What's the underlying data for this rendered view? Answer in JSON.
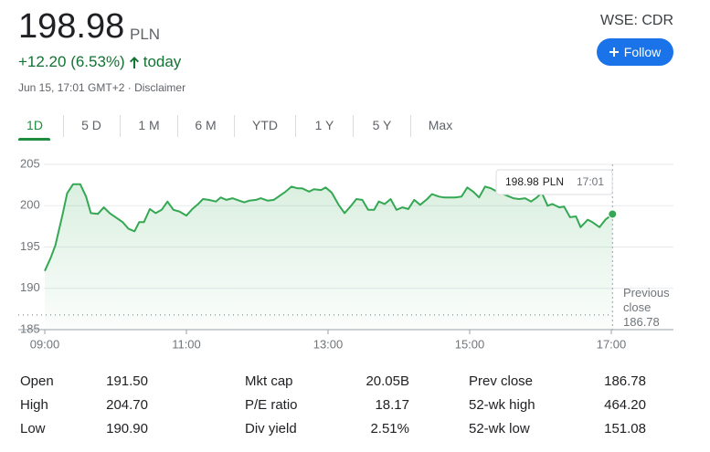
{
  "header": {
    "price": "198.98",
    "currency": "PLN",
    "change": "+12.20 (6.53%)",
    "period": "today",
    "timestamp": "Jun 15, 17:01 GMT+2",
    "disclaimer": "Disclaimer",
    "ticker": "WSE: CDR",
    "follow": "Follow"
  },
  "tabs": [
    "1D",
    "5 D",
    "1 M",
    "6 M",
    "YTD",
    "1 Y",
    "5 Y",
    "Max"
  ],
  "chart_data": {
    "type": "line",
    "color": "#34a853",
    "x": [
      "09:00",
      "09:05",
      "09:09",
      "09:15",
      "09:19",
      "09:24",
      "09:30",
      "09:35",
      "09:39",
      "09:45",
      "09:50",
      "09:55",
      "10:00",
      "10:06",
      "10:11",
      "10:16",
      "10:20",
      "10:24",
      "10:29",
      "10:34",
      "10:39",
      "10:44",
      "10:49",
      "10:54",
      "11:00",
      "11:05",
      "11:10",
      "11:14",
      "11:19",
      "11:25",
      "11:29",
      "11:34",
      "11:39",
      "11:43",
      "11:49",
      "11:53",
      "11:59",
      "12:03",
      "12:09",
      "12:14",
      "12:19",
      "12:24",
      "12:29",
      "12:34",
      "12:38",
      "12:44",
      "12:48",
      "12:54",
      "12:58",
      "13:03",
      "13:09",
      "13:14",
      "13:19",
      "13:24",
      "13:29",
      "13:34",
      "13:39",
      "13:43",
      "13:48",
      "13:53",
      "13:58",
      "14:03",
      "14:08",
      "14:13",
      "14:18",
      "14:24",
      "14:28",
      "14:34",
      "14:38",
      "14:44",
      "14:48",
      "14:53",
      "14:58",
      "15:03",
      "15:08",
      "15:13",
      "15:18",
      "15:22",
      "15:32",
      "15:37",
      "15:42",
      "15:47",
      "15:52",
      "15:57",
      "16:01",
      "16:06",
      "16:10",
      "16:16",
      "16:20",
      "16:25",
      "16:30",
      "16:34",
      "16:40",
      "16:44",
      "16:50",
      "16:55",
      "17:01"
    ],
    "values": [
      192.1,
      193.7,
      195.2,
      198.9,
      201.5,
      202.6,
      202.6,
      201.1,
      199.1,
      199.0,
      199.8,
      199.1,
      198.6,
      198.0,
      197.2,
      196.9,
      198.0,
      198.0,
      199.6,
      199.1,
      199.5,
      200.5,
      199.5,
      199.3,
      198.8,
      199.6,
      200.2,
      200.8,
      200.7,
      200.5,
      201.0,
      200.7,
      200.9,
      200.7,
      200.4,
      200.6,
      200.7,
      200.9,
      200.6,
      200.7,
      201.2,
      201.7,
      202.3,
      202.1,
      202.1,
      201.7,
      202.0,
      201.9,
      202.2,
      201.6,
      200.1,
      199.1,
      199.9,
      200.8,
      200.7,
      199.5,
      199.5,
      200.5,
      200.2,
      200.8,
      199.5,
      199.8,
      199.6,
      200.7,
      200.1,
      200.8,
      201.4,
      201.1,
      201.0,
      201.0,
      201.0,
      201.1,
      202.2,
      201.7,
      201.0,
      202.3,
      202.1,
      201.8,
      201.2,
      200.9,
      200.8,
      200.9,
      200.5,
      201.0,
      201.6,
      200.0,
      200.2,
      199.8,
      199.9,
      198.6,
      198.7,
      197.4,
      198.3,
      198.0,
      197.4,
      198.3,
      198.98
    ],
    "xlim": [
      "09:00",
      "17:00"
    ],
    "xticks": [
      "09:00",
      "11:00",
      "13:00",
      "15:00",
      "17:00"
    ],
    "ylim": [
      185,
      205
    ],
    "yticks": [
      185,
      190,
      195,
      200,
      205
    ],
    "grid": true,
    "annotation": {
      "label": "Previous close",
      "value": 186.78
    }
  },
  "stats": [
    [
      [
        "Open",
        "191.50"
      ],
      [
        "High",
        "204.70"
      ],
      [
        "Low",
        "190.90"
      ]
    ],
    [
      [
        "Mkt cap",
        "20.05B"
      ],
      [
        "P/E ratio",
        "18.17"
      ],
      [
        "Div yield",
        "2.51%"
      ]
    ],
    [
      [
        "Prev close",
        "186.78"
      ],
      [
        "52-wk high",
        "464.20"
      ],
      [
        "52-wk low",
        "151.08"
      ]
    ]
  ]
}
